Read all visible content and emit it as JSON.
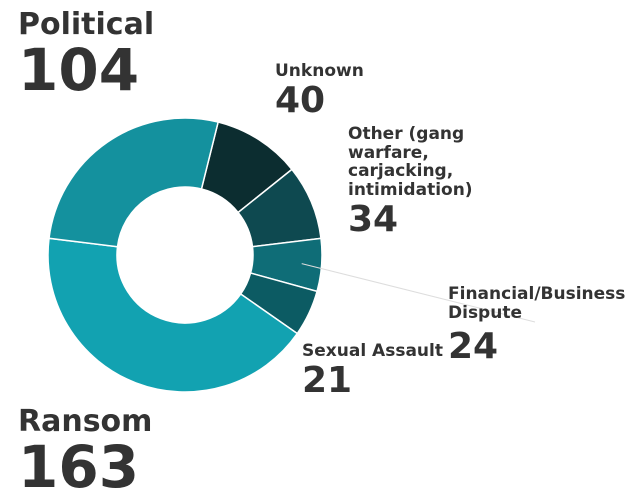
{
  "chart_data": {
    "type": "donut",
    "categories": [
      "Unknown",
      "Other (gang warfare, carjacking, intimidation)",
      "Financial/Business Dispute",
      "Sexual Assault",
      "Ransom",
      "Political"
    ],
    "values": [
      40,
      34,
      24,
      21,
      163,
      104
    ],
    "colors": [
      "#0c2d30",
      "#0e4950",
      "#0f6d77",
      "#0c5b63",
      "#12a2b1",
      "#14919e"
    ]
  }
}
